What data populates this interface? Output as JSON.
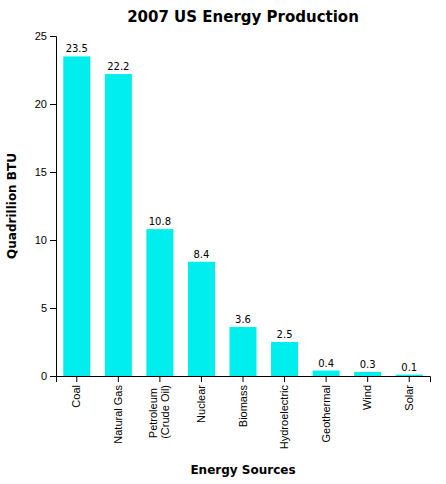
{
  "chart_data": {
    "type": "bar",
    "title": "2007 US Energy Production",
    "xlabel": "Energy Sources",
    "ylabel": "Quadrillion BTU",
    "categories": [
      "Coal",
      "Natural Gas",
      "Petroleum\n(Crude Oil)",
      "Nuclear",
      "Biomass",
      "Hydroelectric",
      "Geothermal",
      "Wind",
      "Solar"
    ],
    "values": [
      23.5,
      22.2,
      10.8,
      8.4,
      3.6,
      2.5,
      0.4,
      0.3,
      0.1
    ],
    "color": "#00EEEE",
    "ylim": [
      0,
      25
    ],
    "yticks": [
      0,
      5,
      10,
      15,
      20,
      25
    ],
    "grid": false,
    "data_labels": true
  }
}
